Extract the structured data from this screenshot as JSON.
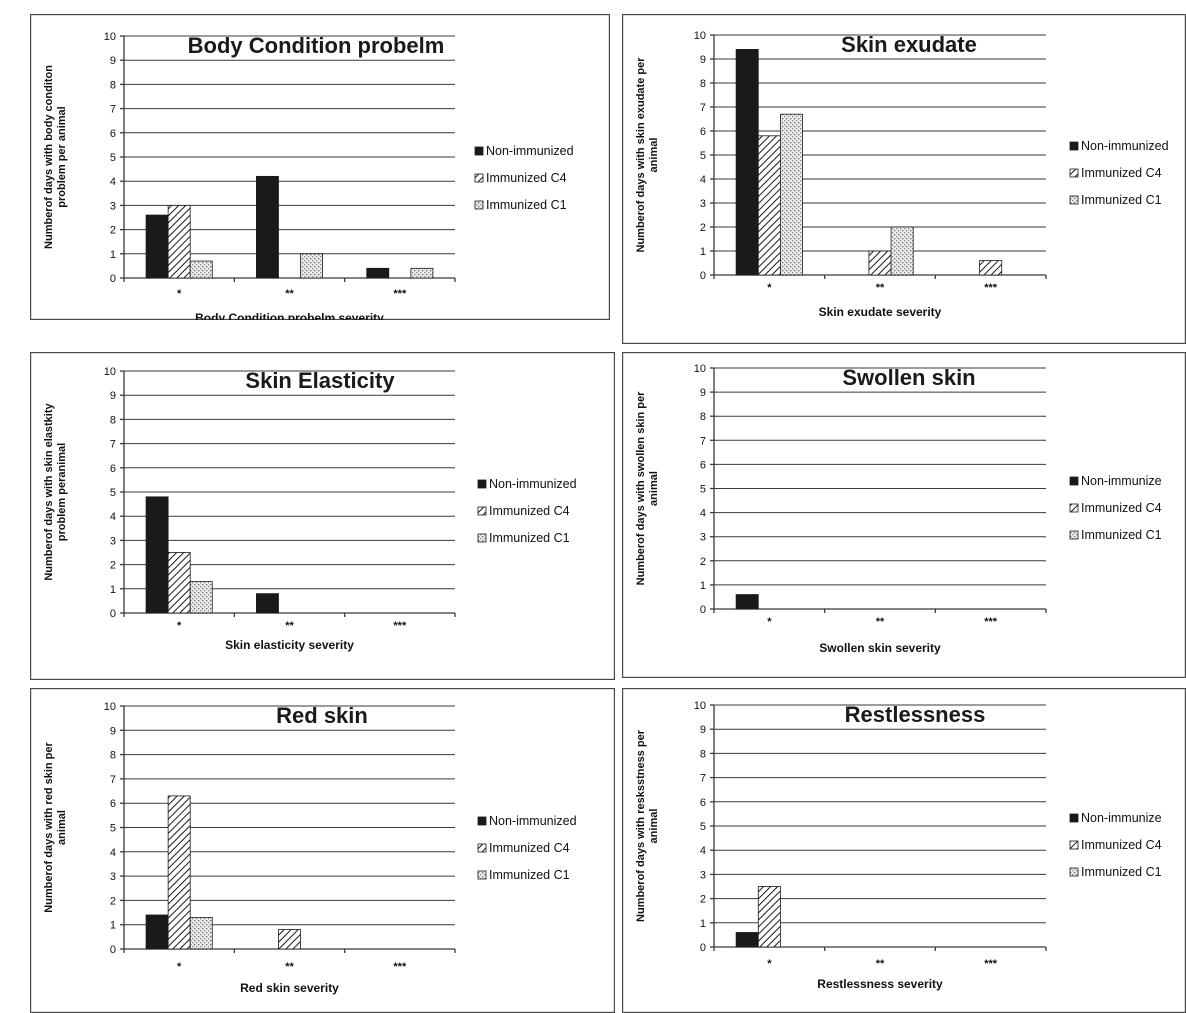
{
  "chart_data": [
    {
      "type": "bar",
      "title": "Body Condition probelm",
      "xlabel": "Body Condition probelm severity",
      "ylabel": [
        "Numberof days with body conditon",
        "problem per animal"
      ],
      "categories": [
        "*",
        "**",
        "***"
      ],
      "ylim": [
        0,
        10
      ],
      "yticks": [
        0,
        1,
        2,
        3,
        4,
        5,
        6,
        7,
        8,
        9,
        10
      ],
      "grid": true,
      "legend": "right",
      "series": [
        {
          "name": "Non-immunized",
          "values": [
            2.6,
            4.2,
            0.4
          ]
        },
        {
          "name": "Immunized C4",
          "values": [
            3.0,
            0,
            0
          ]
        },
        {
          "name": "Immunized C1",
          "values": [
            0.7,
            1.0,
            0.4
          ]
        }
      ]
    },
    {
      "type": "bar",
      "title": "Skin exudate",
      "xlabel": "Skin exudate severity",
      "ylabel": [
        "Numberof days with skin exudate per",
        "animal"
      ],
      "categories": [
        "*",
        "**",
        "***"
      ],
      "ylim": [
        0,
        10
      ],
      "yticks": [
        0,
        1,
        2,
        3,
        4,
        5,
        6,
        7,
        8,
        9,
        10
      ],
      "grid": true,
      "legend": "right",
      "series": [
        {
          "name": "Non-immunized",
          "values": [
            9.4,
            0,
            0
          ]
        },
        {
          "name": "Immunized C4",
          "values": [
            5.8,
            1.0,
            0.6
          ]
        },
        {
          "name": "Immunized C1",
          "values": [
            6.7,
            2.0,
            0
          ]
        }
      ]
    },
    {
      "type": "bar",
      "title": "Skin Elasticity",
      "xlabel": "Skin elasticity severity",
      "ylabel": [
        "Numberof days with skin elastkity",
        "problem peranimal"
      ],
      "categories": [
        "*",
        "**",
        "***"
      ],
      "ylim": [
        0,
        10
      ],
      "yticks": [
        0,
        1,
        2,
        3,
        4,
        5,
        6,
        7,
        8,
        9,
        10
      ],
      "grid": true,
      "legend": "right",
      "series": [
        {
          "name": "Non-immunized",
          "values": [
            4.8,
            0.8,
            0
          ]
        },
        {
          "name": "Immunized C4",
          "values": [
            2.5,
            0,
            0
          ]
        },
        {
          "name": "Immunized C1",
          "values": [
            1.3,
            0,
            0
          ]
        }
      ]
    },
    {
      "type": "bar",
      "title": "Swollen skin",
      "xlabel": "Swollen skin severity",
      "ylabel": [
        "Numberof days with swollen skin per",
        "animal"
      ],
      "categories": [
        "*",
        "**",
        "***"
      ],
      "ylim": [
        0,
        10
      ],
      "yticks": [
        0,
        1,
        2,
        3,
        4,
        5,
        6,
        7,
        8,
        9,
        10
      ],
      "grid": true,
      "legend": "right",
      "series": [
        {
          "name": "Non-immunize",
          "values": [
            0.6,
            0,
            0
          ]
        },
        {
          "name": "Immunized C4",
          "values": [
            0,
            0,
            0
          ]
        },
        {
          "name": "Immunized C1",
          "values": [
            0,
            0,
            0
          ]
        }
      ]
    },
    {
      "type": "bar",
      "title": "Red skin",
      "xlabel": "Red skin severity",
      "ylabel": [
        "Numberof days with red skin per",
        "animal"
      ],
      "categories": [
        "*",
        "**",
        "***"
      ],
      "ylim": [
        0,
        10
      ],
      "yticks": [
        0,
        1,
        2,
        3,
        4,
        5,
        6,
        7,
        8,
        9,
        10
      ],
      "grid": true,
      "legend": "right",
      "series": [
        {
          "name": "Non-immunized",
          "values": [
            1.4,
            0,
            0
          ]
        },
        {
          "name": "Immunized C4",
          "values": [
            6.3,
            0.8,
            0
          ]
        },
        {
          "name": "Immunized C1",
          "values": [
            1.3,
            0,
            0
          ]
        }
      ]
    },
    {
      "type": "bar",
      "title": "Restlessness",
      "xlabel": "Restlessness severity",
      "ylabel": [
        "Numberof days with resksstness per",
        "animal"
      ],
      "categories": [
        "*",
        "**",
        "***"
      ],
      "ylim": [
        0,
        10
      ],
      "yticks": [
        0,
        1,
        2,
        3,
        4,
        5,
        6,
        7,
        8,
        9,
        10
      ],
      "grid": true,
      "legend": "right",
      "series": [
        {
          "name": "Non-immunize",
          "values": [
            0.6,
            0,
            0
          ]
        },
        {
          "name": "Immunized C4",
          "values": [
            2.5,
            0,
            0
          ]
        },
        {
          "name": "Immunized C1",
          "values": [
            0,
            0,
            0
          ]
        }
      ]
    }
  ],
  "colors": {
    "non_immunized": "#1a1a1a",
    "immunized_c4": "hatch-diagonal",
    "immunized_c1": "dotted-light"
  }
}
